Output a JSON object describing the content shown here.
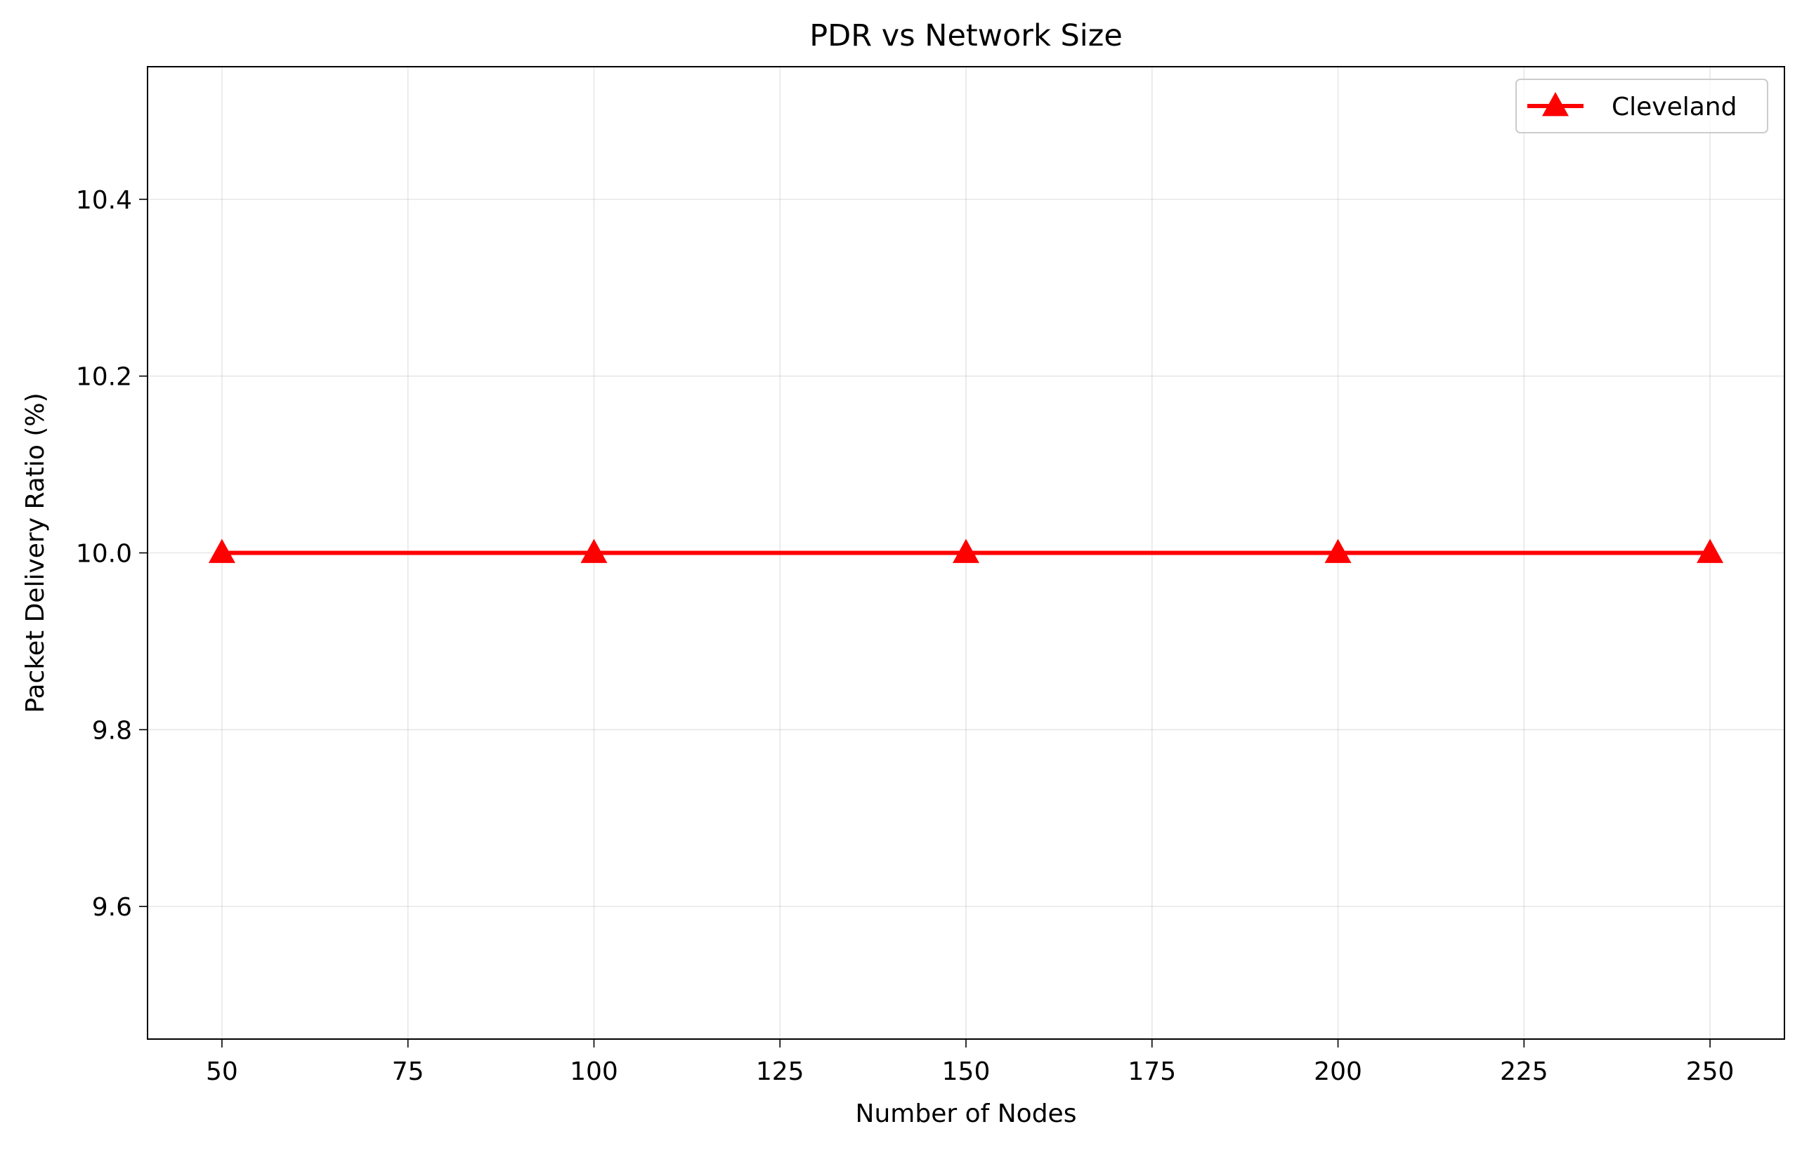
{
  "chart_data": {
    "type": "line",
    "title": "PDR vs Network Size",
    "xlabel": "Number of Nodes",
    "ylabel": "Packet Delivery Ratio (%)",
    "x": [
      50,
      100,
      150,
      200,
      250
    ],
    "series": [
      {
        "name": "Cleveland",
        "values": [
          10.0,
          10.0,
          10.0,
          10.0,
          10.0
        ],
        "color": "#ff0000",
        "marker": "triangle-up"
      }
    ],
    "xlim": [
      40,
      260
    ],
    "ylim": [
      9.45,
      10.55
    ],
    "xticks": [
      50,
      75,
      100,
      125,
      150,
      175,
      200,
      225,
      250
    ],
    "xtick_labels": [
      "50",
      "75",
      "100",
      "125",
      "150",
      "175",
      "200",
      "225",
      "250"
    ],
    "yticks": [
      9.6,
      9.8,
      10.0,
      10.2,
      10.4
    ],
    "ytick_labels": [
      "9.6",
      "9.8",
      "10.0",
      "10.2",
      "10.4"
    ],
    "grid": true,
    "legend_position": "top-right"
  }
}
